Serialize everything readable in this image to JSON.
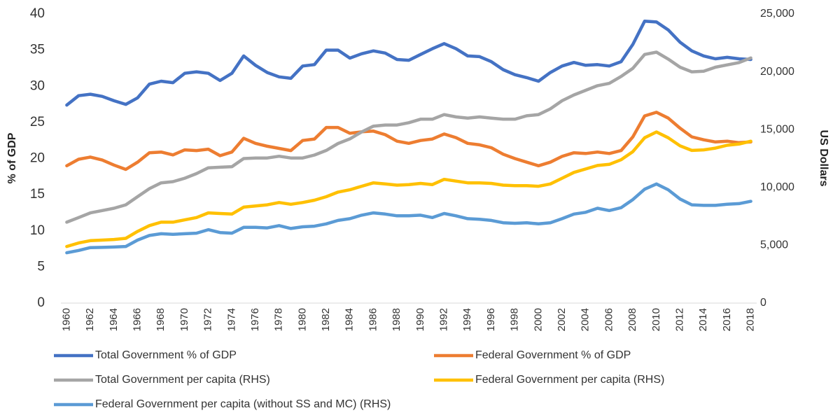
{
  "chart_data": {
    "type": "line",
    "ylabel": "% of GDP",
    "y2label": "US Dollars",
    "categories": [
      "1960",
      null,
      "1962",
      null,
      "1964",
      null,
      "1966",
      null,
      "1968",
      null,
      "1970",
      null,
      "1972",
      null,
      "1974",
      null,
      "1976",
      null,
      "1978",
      null,
      "1980",
      null,
      "1982",
      null,
      "1984",
      null,
      "1986",
      null,
      "1988",
      null,
      "1990",
      null,
      "1992",
      null,
      "1994",
      null,
      "1996",
      null,
      "1998",
      null,
      "2000",
      null,
      "2002",
      null,
      "2004",
      null,
      "2006",
      null,
      "2008",
      null,
      "2010",
      null,
      "2012",
      null,
      "2014",
      null,
      "2016",
      null,
      "2018"
    ],
    "ylim": [
      0,
      40
    ],
    "yticks": [
      0,
      5,
      10,
      15,
      20,
      25,
      30,
      35,
      40
    ],
    "y2lim": [
      0,
      25000
    ],
    "y2ticks": [
      0,
      {
        "value": 5000,
        "label": "5,000"
      },
      {
        "value": 10000,
        "label": "10,000"
      },
      {
        "value": 15000,
        "label": "15,000"
      },
      {
        "value": 20000,
        "label": "20,000"
      },
      {
        "value": 25000,
        "label": "25,000"
      }
    ],
    "grid": false,
    "legend": "bottom",
    "series": [
      {
        "name": "Total Government % of GDP",
        "color": "#4472c4",
        "values": [
          27.4,
          28.7,
          28.9,
          28.6,
          28.0,
          27.5,
          28.4,
          30.3,
          30.7,
          30.5,
          31.8,
          32.0,
          31.8,
          30.8,
          31.8,
          34.2,
          32.9,
          31.9,
          31.3,
          31.1,
          32.8,
          33.0,
          35.0,
          35.0,
          33.9,
          34.5,
          34.9,
          34.6,
          33.7,
          33.6,
          34.4,
          35.2,
          35.9,
          35.2,
          34.2,
          34.1,
          33.4,
          32.3,
          31.6,
          31.2,
          30.7,
          31.9,
          32.8,
          33.3,
          32.9,
          33.0,
          32.8,
          33.4,
          35.8,
          39.0,
          38.9,
          37.8,
          36.1,
          34.9,
          34.2,
          33.8,
          34.0,
          33.8,
          33.7
        ]
      },
      {
        "name": "Federal Government % of GDP",
        "color": "#ed7d31",
        "values": [
          19.0,
          19.9,
          20.2,
          19.8,
          19.1,
          18.5,
          19.5,
          20.8,
          20.9,
          20.5,
          21.2,
          21.1,
          21.3,
          20.4,
          20.9,
          22.8,
          22.1,
          21.7,
          21.4,
          21.1,
          22.5,
          22.7,
          24.3,
          24.3,
          23.5,
          23.7,
          23.8,
          23.3,
          22.4,
          22.1,
          22.5,
          22.7,
          23.4,
          22.9,
          22.1,
          21.9,
          21.5,
          20.6,
          20.0,
          19.5,
          19.0,
          19.5,
          20.3,
          20.8,
          20.7,
          20.9,
          20.7,
          21.1,
          23.0,
          25.9,
          26.4,
          25.6,
          24.2,
          23.0,
          22.6,
          22.3,
          22.4,
          22.2,
          22.3
        ]
      },
      {
        "name": "Total Government per capita (RHS)",
        "color": "#a5a5a5",
        "axis": "y2",
        "values": [
          7000,
          7400,
          7800,
          8000,
          8200,
          8500,
          9200,
          9900,
          10400,
          10500,
          10800,
          11200,
          11700,
          11750,
          11800,
          12500,
          12550,
          12550,
          12700,
          12550,
          12550,
          12800,
          13200,
          13800,
          14200,
          14800,
          15300,
          15400,
          15400,
          15600,
          15900,
          15900,
          16300,
          16100,
          16000,
          16100,
          16000,
          15900,
          15900,
          16200,
          16300,
          16800,
          17500,
          18000,
          18400,
          18800,
          19000,
          19600,
          20300,
          21500,
          21700,
          21100,
          20400,
          20000,
          20050,
          20400,
          20600,
          20800,
          21200
        ]
      },
      {
        "name": "Federal Government per capita (RHS)",
        "color": "#ffc000",
        "axis": "y2",
        "values": [
          4900,
          5200,
          5400,
          5450,
          5500,
          5600,
          6200,
          6700,
          7000,
          7000,
          7200,
          7400,
          7800,
          7750,
          7700,
          8300,
          8400,
          8500,
          8700,
          8550,
          8700,
          8900,
          9200,
          9600,
          9800,
          10100,
          10400,
          10300,
          10200,
          10250,
          10350,
          10250,
          10700,
          10550,
          10400,
          10400,
          10350,
          10200,
          10150,
          10150,
          10100,
          10300,
          10800,
          11300,
          11600,
          11900,
          12000,
          12400,
          13100,
          14300,
          14800,
          14300,
          13600,
          13200,
          13250,
          13400,
          13650,
          13750,
          14000
        ]
      },
      {
        "name": "Federal Government per capita (without SS and MC) (RHS)",
        "color": "#5b9bd5",
        "axis": "y2",
        "values": [
          4350,
          4550,
          4800,
          4820,
          4850,
          4900,
          5450,
          5850,
          6000,
          5950,
          6000,
          6050,
          6350,
          6100,
          6050,
          6550,
          6550,
          6500,
          6700,
          6450,
          6600,
          6650,
          6850,
          7150,
          7300,
          7600,
          7800,
          7700,
          7550,
          7550,
          7600,
          7400,
          7750,
          7550,
          7300,
          7250,
          7150,
          6950,
          6900,
          6950,
          6850,
          6950,
          7300,
          7700,
          7850,
          8200,
          8000,
          8250,
          8950,
          9850,
          10300,
          9800,
          9000,
          8500,
          8450,
          8450,
          8550,
          8600,
          8800
        ]
      }
    ]
  }
}
